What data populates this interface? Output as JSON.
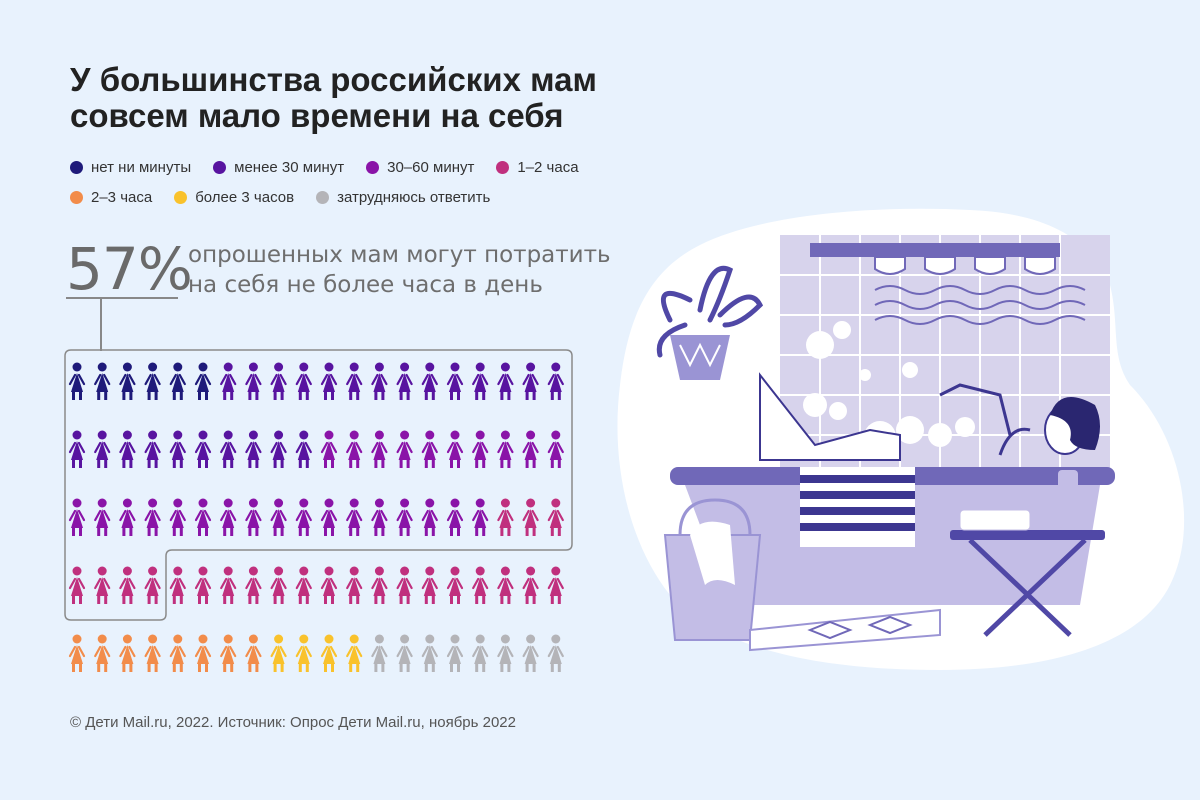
{
  "title": {
    "line1": "У большинства российских мам",
    "line2": "совсем мало времени на себя"
  },
  "legend": {
    "row1": [
      {
        "label": "нет ни минуты",
        "color": "#1e1a7a"
      },
      {
        "label": "менее 30 минут",
        "color": "#5814a0"
      },
      {
        "label": "30–60 минут",
        "color": "#8a14a8"
      },
      {
        "label": "1–2 часа",
        "color": "#c0307e"
      }
    ],
    "row2": [
      {
        "label": "2–3 часа",
        "color": "#f28c4a"
      },
      {
        "label": "более 3 часов",
        "color": "#f9c22c"
      },
      {
        "label": "затрудняюсь ответить",
        "color": "#b4b4b8"
      }
    ]
  },
  "highlight": {
    "value": "57%",
    "text": "опрошенных мам могут потратить на себя не более часа в день"
  },
  "chart_data": {
    "type": "pictogram",
    "unit": "1 icon = 1 respondent group share",
    "total_icons": 100,
    "columns": 20,
    "rows": 5,
    "categories": [
      "нет ни минуты",
      "менее 30 минут",
      "30–60 минут",
      "1–2 часа",
      "2–3 часа",
      "более 3 часов",
      "затрудняюсь ответить"
    ],
    "values": [
      6,
      24,
      27,
      23,
      8,
      4,
      8
    ],
    "colors": [
      "#1e1a7a",
      "#5814a0",
      "#8a14a8",
      "#c0307e",
      "#f28c4a",
      "#f9c22c",
      "#b4b4b8"
    ],
    "highlighted_share_percent": 57
  },
  "footer": {
    "text": "© Дети Mail.ru, 2022. Источник: Опрос Дети Mail.ru, ноябрь 2022"
  }
}
